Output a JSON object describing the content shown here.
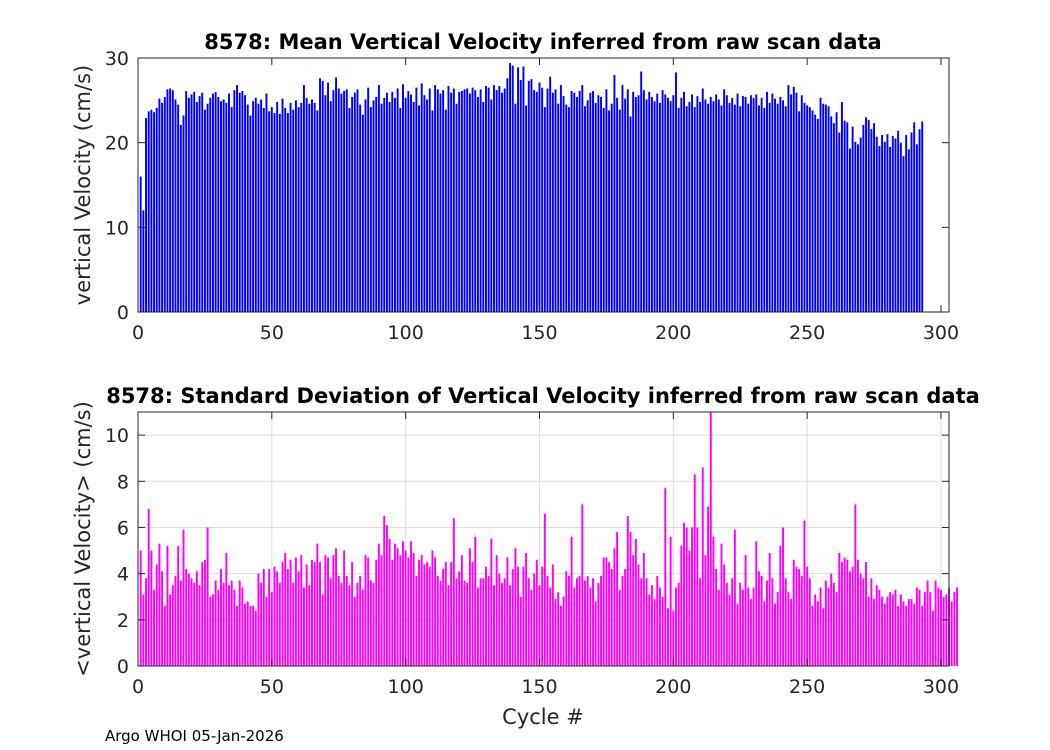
{
  "footer": "Argo WHOI 05-Jan-2026",
  "chart_data": [
    {
      "type": "bar",
      "title": "8578: Mean Vertical Velocity inferred from raw scan data",
      "xlabel": "",
      "ylabel": "vertical Velocity (cm/s)",
      "xlim": [
        0,
        303
      ],
      "ylim": [
        0,
        30
      ],
      "xticks": [
        0,
        50,
        100,
        150,
        200,
        250,
        300
      ],
      "yticks": [
        0,
        10,
        20,
        30
      ],
      "grid": false,
      "color": "#0000ff",
      "values": [
        16.0,
        12.0,
        22.9,
        23.7,
        23.9,
        23.6,
        24.1,
        25.2,
        24.7,
        25.4,
        26.3,
        26.4,
        26.2,
        25.1,
        24.5,
        22.1,
        23.2,
        26.1,
        25.3,
        25.7,
        26.0,
        24.8,
        25.5,
        25.9,
        23.9,
        24.6,
        25.3,
        25.8,
        26.0,
        25.4,
        24.9,
        25.1,
        24.7,
        25.8,
        24.2,
        26.2,
        26.8,
        25.9,
        26.1,
        25.6,
        24.5,
        23.2,
        24.9,
        25.3,
        24.6,
        25.1,
        24.1,
        25.8,
        23.7,
        24.2,
        23.5,
        24.8,
        23.4,
        25.2,
        24.1,
        23.5,
        24.7,
        23.9,
        25.0,
        24.2,
        24.7,
        26.8,
        25.3,
        24.6,
        25.1,
        24.7,
        23.8,
        27.6,
        27.3,
        25.6,
        27.1,
        24.9,
        26.2,
        27.7,
        26.4,
        25.8,
        26.1,
        26.3,
        24.1,
        25.4,
        25.9,
        26.3,
        24.5,
        23.3,
        25.1,
        26.5,
        24.2,
        25.0,
        25.4,
        26.8,
        24.6,
        25.3,
        25.9,
        24.8,
        26.0,
        25.3,
        26.4,
        24.1,
        26.9,
        25.3,
        26.1,
        25.7,
        24.8,
        26.5,
        24.4,
        27.0,
        25.6,
        25.1,
        26.4,
        23.8,
        26.8,
        26.3,
        25.8,
        26.2,
        23.9,
        26.7,
        25.9,
        26.4,
        24.6,
        26.0,
        26.1,
        26.3,
        26.4,
        25.8,
        26.5,
        26.2,
        25.4,
        26.3,
        24.8,
        26.7,
        26.5,
        25.1,
        26.8,
        26.2,
        26.7,
        25.9,
        26.4,
        27.6,
        29.4,
        29.1,
        24.6,
        28.9,
        27.4,
        29.0,
        24.4,
        27.3,
        27.5,
        26.2,
        26.0,
        27.1,
        26.5,
        24.2,
        26.4,
        27.8,
        25.9,
        26.3,
        24.6,
        26.8,
        25.5,
        24.5,
        24.2,
        26.1,
        25.9,
        25.4,
        26.1,
        26.8,
        24.3,
        25.0,
        25.9,
        26.1,
        24.7,
        25.6,
        25.4,
        24.1,
        26.3,
        23.8,
        24.6,
        28.0,
        25.3,
        23.9,
        26.8,
        25.2,
        26.3,
        23.1,
        26.0,
        25.4,
        25.6,
        28.4,
        26.2,
        25.1,
        26.0,
        25.4,
        24.9,
        25.8,
        24.7,
        26.2,
        25.7,
        25.3,
        24.9,
        25.6,
        28.3,
        24.1,
        25.3,
        26.0,
        24.3,
        24.8,
        25.7,
        24.2,
        25.5,
        24.8,
        26.4,
        25.1,
        24.6,
        25.4,
        24.9,
        25.7,
        25.1,
        24.4,
        26.3,
        25.6,
        24.7,
        25.3,
        24.5,
        25.8,
        24.3,
        25.5,
        25.4,
        24.6,
        25.6,
        25.3,
        25.7,
        24.4,
        25.3,
        24.1,
        26.0,
        24.7,
        25.8,
        25.2,
        24.6,
        25.4,
        25.0,
        24.3,
        26.8,
        25.7,
        26.6,
        25.9,
        23.7,
        25.6,
        24.7,
        24.4,
        24.2,
        23.8,
        23.3,
        22.8,
        25.3,
        24.6,
        24.5,
        24.3,
        23.1,
        22.3,
        23.6,
        21.2,
        24.8,
        22.6,
        22.4,
        19.3,
        21.9,
        20.1,
        19.8,
        20.6,
        22.1,
        23.0,
        22.7,
        21.6,
        22.3,
        20.7,
        19.6,
        20.9,
        20.1,
        21.0,
        19.5,
        20.8,
        20.5,
        21.4,
        20.0,
        18.4,
        20.9,
        19.2,
        21.2,
        22.4,
        19.8,
        21.6,
        22.5
      ]
    },
    {
      "type": "bar",
      "title": "8578: Standard Deviation of Vertical Velocity inferred from raw scan data",
      "xlabel": "Cycle #",
      "ylabel": "<vertical Velocity> (cm/s)",
      "xlim": [
        0,
        303
      ],
      "ylim": [
        0,
        11
      ],
      "xticks": [
        0,
        50,
        100,
        150,
        200,
        250,
        300
      ],
      "yticks": [
        0,
        2,
        4,
        6,
        8,
        10
      ],
      "grid": true,
      "color": "#ff00ff",
      "values": [
        5.0,
        3.1,
        3.8,
        6.8,
        5.0,
        3.3,
        4.4,
        5.3,
        4.1,
        2.6,
        5.2,
        3.1,
        3.5,
        3.9,
        5.2,
        3.7,
        5.9,
        4.2,
        4.0,
        3.8,
        3.6,
        4.1,
        3.5,
        4.5,
        4.6,
        6.0,
        3.0,
        3.1,
        3.7,
        3.3,
        4.2,
        3.6,
        4.9,
        3.5,
        3.7,
        3.3,
        2.6,
        3.7,
        3.4,
        2.7,
        2.8,
        2.6,
        2.6,
        2.4,
        4.0,
        3.6,
        4.2,
        3.0,
        4.2,
        3.2,
        4.3,
        4.1,
        3.6,
        4.5,
        4.9,
        4.2,
        4.6,
        3.6,
        4.7,
        4.1,
        4.8,
        3.4,
        4.4,
        3.5,
        4.6,
        4.5,
        5.3,
        4.5,
        3.1,
        4.8,
        4.7,
        3.8,
        4.8,
        5.1,
        3.9,
        3.6,
        5.0,
        3.9,
        3.5,
        4.5,
        3.0,
        3.6,
        3.9,
        3.3,
        4.8,
        4.7,
        3.7,
        3.6,
        4.6,
        5.3,
        4.8,
        6.5,
        6.1,
        5.5,
        4.6,
        5.3,
        5.1,
        4.8,
        5.4,
        5.0,
        4.7,
        5.4,
        4.9,
        3.9,
        4.6,
        4.8,
        4.4,
        4.5,
        4.3,
        5.0,
        4.7,
        3.9,
        3.7,
        4.2,
        4.5,
        3.5,
        4.5,
        6.4,
        3.8,
        4.1,
        4.8,
        3.7,
        3.6,
        5.1,
        4.5,
        5.6,
        3.4,
        3.8,
        3.8,
        4.3,
        3.9,
        5.5,
        3.5,
        4.8,
        4.0,
        3.6,
        3.8,
        4.7,
        3.5,
        4.2,
        5.1,
        4.3,
        3.0,
        4.3,
        4.9,
        3.8,
        3.3,
        4.0,
        4.6,
        3.5,
        4.3,
        6.6,
        3.9,
        3.4,
        4.4,
        2.9,
        3.2,
        2.6,
        3.0,
        4.1,
        3.9,
        5.6,
        3.4,
        3.8,
        3.9,
        7.0,
        3.7,
        3.9,
        3.4,
        3.8,
        2.8,
        3.6,
        3.9,
        4.7,
        4.7,
        4.5,
        4.2,
        5.1,
        5.8,
        3.3,
        3.9,
        4.2,
        6.5,
        5.8,
        4.8,
        5.5,
        4.4,
        3.8,
        4.9,
        3.8,
        3.1,
        3.5,
        2.9,
        3.9,
        3.4,
        3.0,
        7.7,
        2.5,
        5.6,
        2.4,
        3.4,
        3.6,
        5.2,
        6.2,
        6.0,
        5.0,
        6.0,
        8.3,
        6.0,
        3.8,
        8.6,
        4.8,
        6.9,
        11.0,
        5.6,
        4.2,
        3.3,
        5.3,
        4.4,
        3.6,
        3.1,
        3.8,
        5.9,
        2.7,
        3.6,
        3.3,
        4.8,
        3.4,
        2.9,
        3.4,
        5.4,
        4.1,
        3.9,
        2.8,
        3.7,
        4.9,
        3.8,
        2.7,
        3.2,
        5.2,
        6.0,
        3.8,
        3.2,
        2.9,
        4.6,
        4.3,
        4.2,
        3.9,
        6.3,
        4.3,
        3.8,
        2.6,
        3.1,
        2.8,
        3.4,
        2.5,
        3.7,
        3.4,
        4.0,
        3.6,
        3.2,
        4.9,
        4.5,
        4.7,
        4.6,
        4.1,
        4.3,
        7.0,
        4.6,
        4.0,
        3.8,
        4.5,
        3.0,
        3.8,
        2.9,
        3.5,
        3.3,
        3.0,
        2.7,
        3.0,
        3.2,
        3.1,
        3.3,
        2.6,
        3.1,
        2.8,
        2.6,
        2.9,
        2.9,
        2.7,
        3.4,
        3.3,
        2.6,
        3.2,
        3.7,
        3.2,
        2.4,
        3.7,
        3.4,
        3.3,
        3.0,
        3.1,
        3.4,
        2.8,
        3.2,
        3.4
      ]
    }
  ]
}
